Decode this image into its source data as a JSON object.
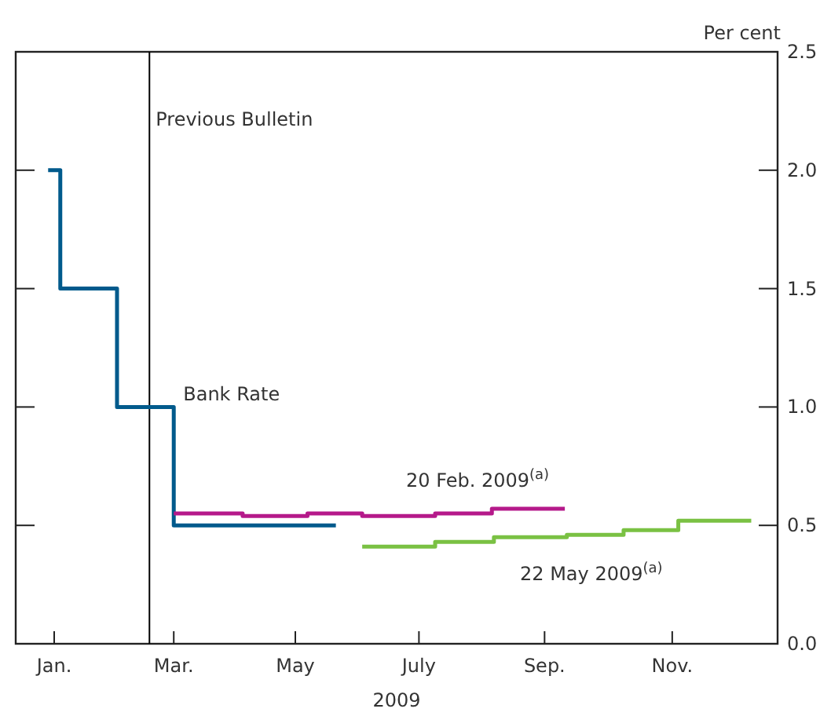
{
  "chart_data": {
    "type": "step",
    "xlabel": "2009",
    "ylabel": "Per cent",
    "xlim": [
      "2008-12-17",
      "2009-12-28"
    ],
    "xticks": [
      {
        "value": "2009-01-05",
        "label": "Jan."
      },
      {
        "value": "2009-03-05",
        "label": "Mar."
      },
      {
        "value": "2009-05-04",
        "label": "May"
      },
      {
        "value": "2009-07-04",
        "label": "July"
      },
      {
        "value": "2009-09-04",
        "label": "Sep."
      },
      {
        "value": "2009-11-06",
        "label": "Nov."
      }
    ],
    "ylim": [
      0,
      2.5
    ],
    "yticks": [
      {
        "value": 0,
        "label": "0.0"
      },
      {
        "value": 0.5,
        "label": "0.5"
      },
      {
        "value": 1,
        "label": "1.0"
      },
      {
        "value": 1.5,
        "label": "1.5"
      },
      {
        "value": 2,
        "label": "2.0"
      },
      {
        "value": 2.5,
        "label": "2.5"
      }
    ],
    "grid": false,
    "ref_lines": [
      {
        "axis": "x",
        "value": "2009-02-21",
        "label": "Previous Bulletin",
        "color": "#000000"
      }
    ],
    "series": [
      {
        "name": "Bank Rate",
        "color": "#005a8c",
        "x": [
          "2009-01-02",
          "2009-01-08",
          "2009-02-05",
          "2009-03-05",
          "2009-05-24"
        ],
        "values": [
          2.0,
          1.5,
          1.0,
          0.5,
          0.5
        ]
      },
      {
        "name": "20 Feb. 2009$^{(a)}$",
        "color": "#b5198a",
        "x": [
          "2009-03-05",
          "2009-04-08",
          "2009-05-10",
          "2009-06-06",
          "2009-07-12",
          "2009-08-09",
          "2009-09-14"
        ],
        "values": [
          0.55,
          0.54,
          0.55,
          0.54,
          0.55,
          0.57,
          0.57
        ]
      },
      {
        "name": "22 May 2009$^{(a)}$",
        "color": "#7ac143",
        "x": [
          "2009-06-06",
          "2009-07-12",
          "2009-08-10",
          "2009-09-15",
          "2009-10-13",
          "2009-11-09",
          "2009-12-15"
        ],
        "values": [
          0.41,
          0.43,
          0.45,
          0.46,
          0.48,
          0.52,
          0.52
        ]
      }
    ]
  }
}
